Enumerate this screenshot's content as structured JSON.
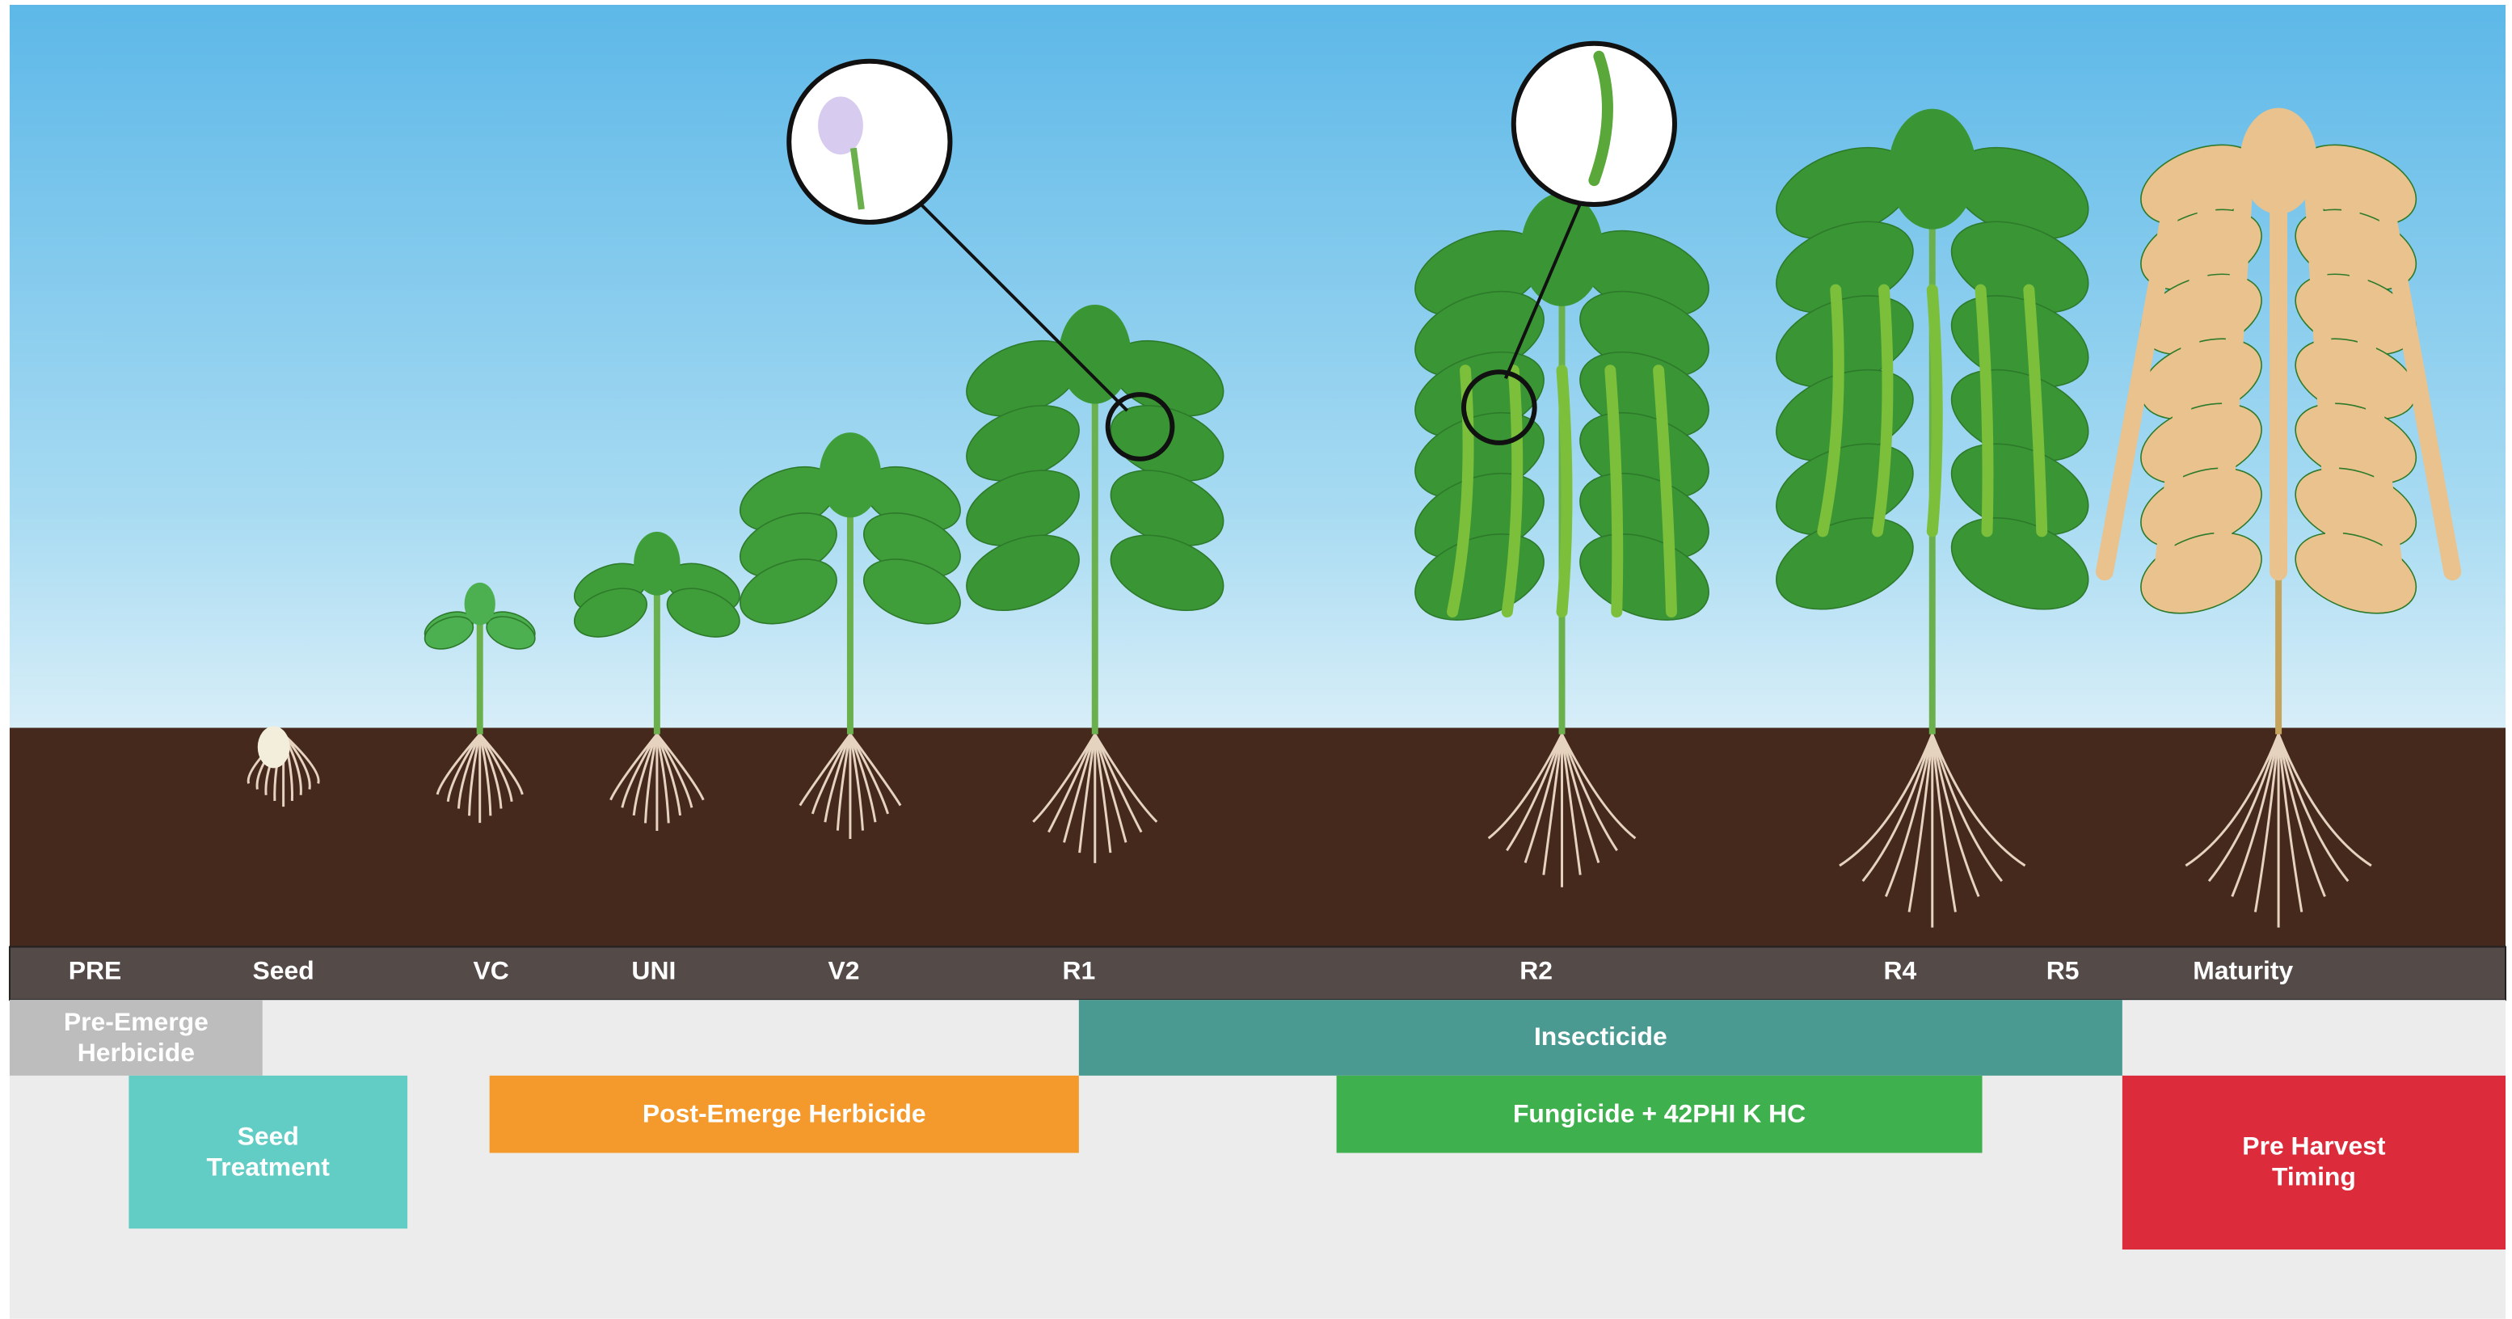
{
  "stages": [
    "PRE",
    "Seed",
    "VC",
    "UNI",
    "V2",
    "R1",
    "R2",
    "R4",
    "R5",
    "Maturity"
  ],
  "treatments": [
    "Pre-Emerge Herbicide",
    "Seed Treatment",
    "Post-Emerge Herbicide",
    "Insecticide",
    "Fungicide + 42PHI K HC",
    "Pre Harvest Timing"
  ]
}
